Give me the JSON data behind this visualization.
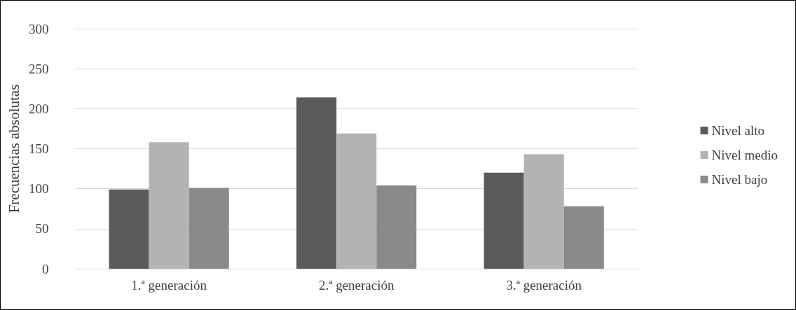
{
  "chart_data": {
    "type": "bar",
    "ylabel": "Frecuencias absolutas",
    "categories": [
      "1.ª generación",
      "2.ª generación",
      "3.ª generación"
    ],
    "series": [
      {
        "name": "Nivel alto",
        "color": "#5b5b5b",
        "values": [
          99,
          214,
          120
        ]
      },
      {
        "name": "Nivel medio",
        "color": "#b3b3b3",
        "values": [
          158,
          169,
          143
        ]
      },
      {
        "name": "Nivel bajo",
        "color": "#8a8a8a",
        "values": [
          101,
          104,
          78
        ]
      }
    ],
    "ylim": [
      0,
      300
    ],
    "yticks": [
      0,
      50,
      100,
      150,
      200,
      250,
      300
    ],
    "grid": "y",
    "legend": "right"
  }
}
